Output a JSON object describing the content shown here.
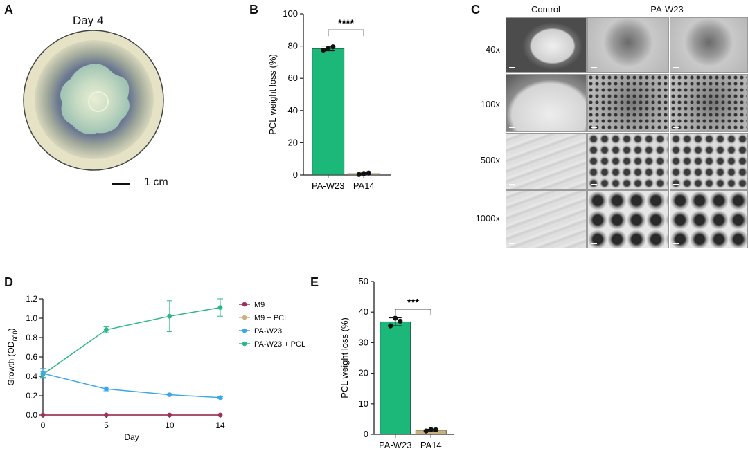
{
  "panel_a": {
    "letter": "A",
    "title": "Day 4",
    "scale_label": "1 cm"
  },
  "panel_b": {
    "letter": "B",
    "significance": "****"
  },
  "panel_c": {
    "letter": "C",
    "column_headers": [
      "Control",
      "PA-W23"
    ],
    "rows": [
      "40x",
      "100x",
      "500x",
      "1000x"
    ]
  },
  "panel_d": {
    "letter": "D"
  },
  "panel_e": {
    "letter": "E",
    "significance": "***"
  },
  "colors": {
    "green_bar": "#1cb87a",
    "tan_bar": "#c9b27f",
    "m9": "#a0305a",
    "m9_pcl": "#c9b27f",
    "pa_w23": "#3aa8e8",
    "pa_w23_pcl": "#2bb888"
  },
  "chart_data": [
    {
      "id": "B",
      "type": "bar",
      "categories": [
        "PA-W23",
        "PA14"
      ],
      "values": [
        78.5,
        0.8
      ],
      "points": [
        [
          77.5,
          79.5,
          78.5
        ],
        [
          0.3,
          1.2,
          0.9
        ]
      ],
      "errors": [
        1.5,
        0.5
      ],
      "ylabel": "PCL weight loss (%)",
      "ylim": [
        0,
        100
      ],
      "yticks": [
        0,
        20,
        40,
        60,
        80,
        100
      ],
      "annotation": "****"
    },
    {
      "id": "D",
      "type": "line",
      "x": [
        0,
        5,
        10,
        14
      ],
      "xticks": [
        0,
        5,
        10,
        14
      ],
      "xlabel": "Day",
      "ylabel": "Growth (OD600)",
      "ylim": [
        0,
        1.2
      ],
      "yticks": [
        "0.0",
        "0.2",
        "0.4",
        "0.6",
        "0.8",
        "1.0",
        "1.2"
      ],
      "legend_position": "right",
      "series": [
        {
          "name": "M9",
          "values": [
            0.0,
            0.0,
            0.0,
            0.0
          ],
          "errors": [
            0,
            0,
            0,
            0
          ]
        },
        {
          "name": "M9 + PCL",
          "values": [
            0.0,
            0.0,
            0.0,
            0.0
          ],
          "errors": [
            0,
            0,
            0,
            0
          ]
        },
        {
          "name": "PA-W23",
          "values": [
            0.43,
            0.27,
            0.21,
            0.18
          ],
          "errors": [
            0.05,
            0.02,
            0.01,
            0.01
          ]
        },
        {
          "name": "PA-W23 + PCL",
          "values": [
            0.42,
            0.88,
            1.02,
            1.11
          ],
          "errors": [
            0.03,
            0.03,
            0.16,
            0.09
          ]
        }
      ]
    },
    {
      "id": "E",
      "type": "bar",
      "categories": [
        "PA-W23",
        "PA14"
      ],
      "values": [
        36.8,
        1.4
      ],
      "points": [
        [
          35.5,
          37.0,
          38.0
        ],
        [
          1.1,
          1.5,
          1.6
        ]
      ],
      "errors": [
        1.3,
        0.3
      ],
      "ylabel": "PCL weight loss (%)",
      "ylim": [
        0,
        50
      ],
      "yticks": [
        0,
        10,
        20,
        30,
        40,
        50
      ],
      "annotation": "***"
    }
  ]
}
